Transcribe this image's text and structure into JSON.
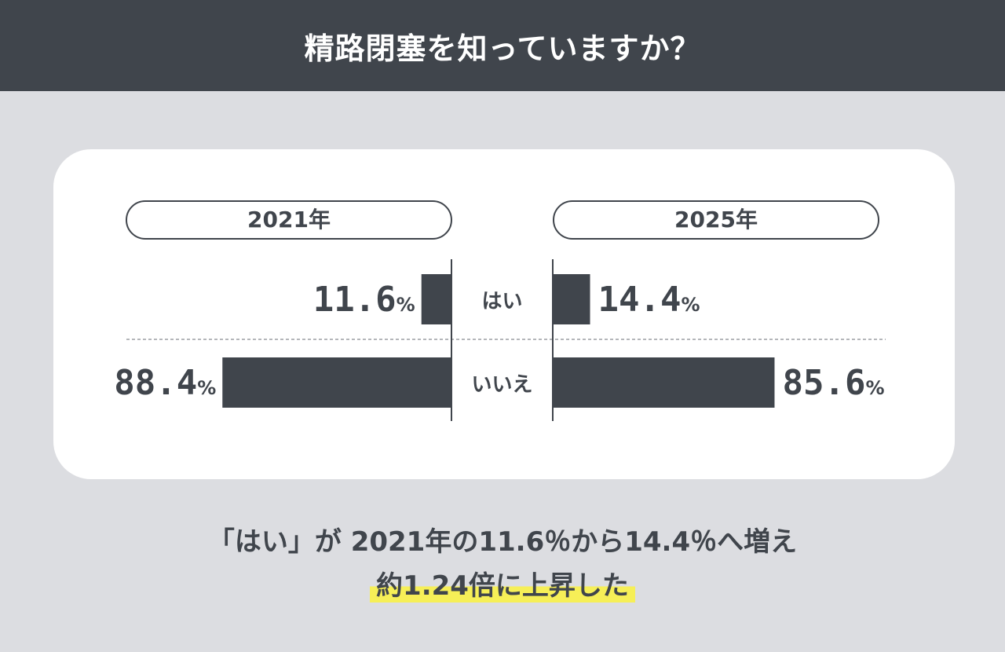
{
  "header": {
    "title": "精路閉塞を知っていますか？"
  },
  "chart_data": {
    "type": "bar",
    "orientation": "horizontal-butterfly",
    "categories": [
      "はい",
      "いいえ"
    ],
    "series": [
      {
        "name": "2021年",
        "values": [
          11.6,
          88.4
        ]
      },
      {
        "name": "2025年",
        "values": [
          14.4,
          85.6
        ]
      }
    ],
    "value_labels": {
      "left": [
        {
          "num": "11.6",
          "unit": "%"
        },
        {
          "num": "88.4",
          "unit": "%"
        }
      ],
      "right": [
        {
          "num": "14.4",
          "unit": "%"
        },
        {
          "num": "85.6",
          "unit": "%"
        }
      ]
    },
    "xlim": [
      0,
      100
    ],
    "bar_color": "#40454c"
  },
  "summary": {
    "line1": "「はい」が 2021年の11.6％から14.4％へ増え",
    "line2": "約1.24倍に上昇した"
  },
  "colors": {
    "background": "#dcdde1",
    "header": "#40454c",
    "highlight": "#f6ef57"
  }
}
